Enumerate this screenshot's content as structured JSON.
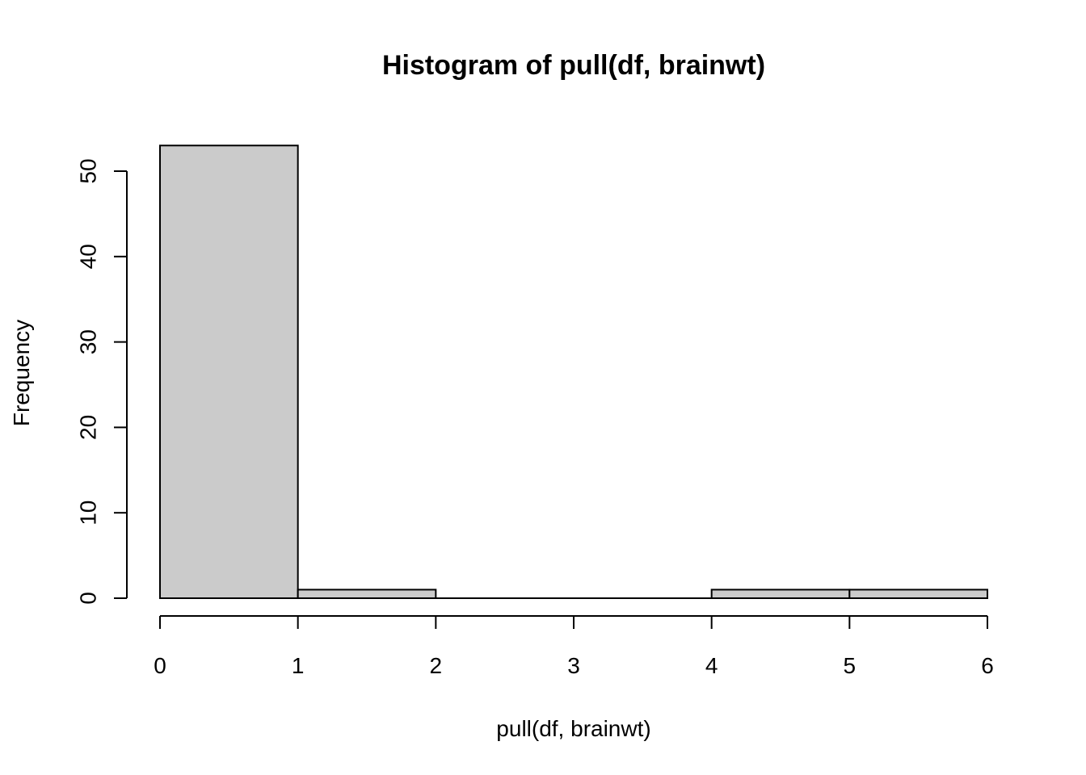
{
  "chart_data": {
    "type": "bar",
    "title": "Histogram of pull(df, brainwt)",
    "xlabel": "pull(df, brainwt)",
    "ylabel": "Frequency",
    "bins": [
      {
        "x0": 0,
        "x1": 1,
        "count": 53
      },
      {
        "x0": 1,
        "x1": 2,
        "count": 1
      },
      {
        "x0": 2,
        "x1": 3,
        "count": 0
      },
      {
        "x0": 3,
        "x1": 4,
        "count": 0
      },
      {
        "x0": 4,
        "x1": 5,
        "count": 1
      },
      {
        "x0": 5,
        "x1": 6,
        "count": 1
      }
    ],
    "xlim": [
      0,
      6
    ],
    "ylim": [
      0,
      53
    ],
    "xticks": [
      "0",
      "1",
      "2",
      "3",
      "4",
      "5",
      "6"
    ],
    "yticks": [
      "0",
      "10",
      "20",
      "30",
      "40",
      "50"
    ],
    "grid": false,
    "colors": {
      "bar_fill": "#cbcbcb",
      "stroke": "#000000"
    }
  }
}
